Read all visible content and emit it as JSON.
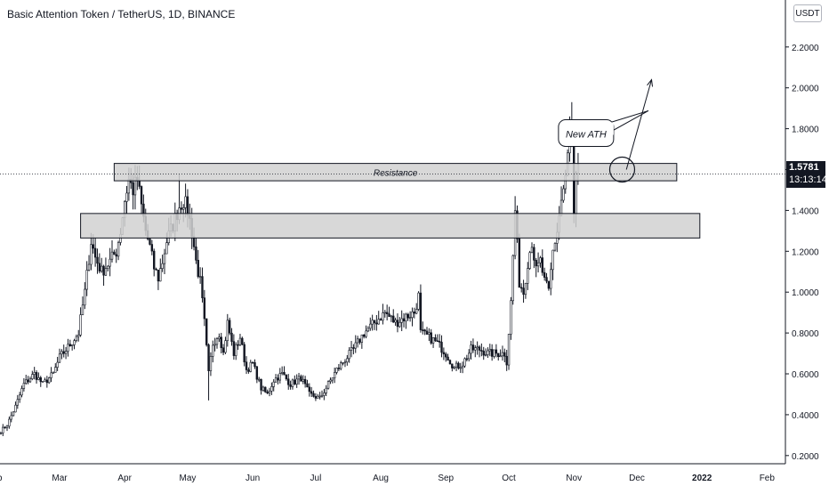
{
  "header": {
    "title": "Basic Attention Token / TetherUS, 1D, BINANCE",
    "currency": "USDT"
  },
  "colors": {
    "candle": "#131722",
    "zone_fill": "#d1d1d1",
    "zone_stroke": "#131722",
    "axis_text": "#131722",
    "crosshair": "#131722"
  },
  "chart_data": {
    "type": "candlestick",
    "symbol": "Basic Attention Token / TetherUS",
    "interval": "1D",
    "exchange": "BINANCE",
    "ylim": [
      0.16,
      2.43
    ],
    "x_ticks": [
      "Feb",
      "Mar",
      "Apr",
      "May",
      "Jun",
      "Jul",
      "Aug",
      "Sep",
      "Oct",
      "Nov",
      "Dec",
      "2022",
      "Feb"
    ],
    "x_tick_days": [
      -31,
      0,
      31,
      61,
      92,
      122,
      153,
      184,
      214,
      245,
      275,
      306,
      337
    ],
    "y_ticks": [
      "0.2000",
      "0.4000",
      "0.6000",
      "0.8000",
      "1.0000",
      "1.2000",
      "1.4000",
      "1.6000",
      "1.8000",
      "2.0000",
      "2.2000"
    ],
    "last_price": "1.5781",
    "countdown": "13:13:14",
    "zones": [
      {
        "label": "Resistance",
        "low": 1.545,
        "high": 1.63,
        "x_start_day": 26,
        "x_end_day": 294
      },
      {
        "label": "",
        "low": 1.265,
        "high": 1.385,
        "x_start_day": 10,
        "x_end_day": 305
      }
    ],
    "annotations": [
      {
        "text": "New ATH",
        "type": "callout",
        "day": 258,
        "price": 1.77
      },
      {
        "type": "circle",
        "day": 268,
        "price": 1.6
      },
      {
        "type": "arrow",
        "from_day": 270,
        "from_price": 1.6,
        "to_day": 282,
        "to_price": 2.04
      }
    ],
    "anchors": [
      [
        -28,
        0.32
      ],
      [
        -25,
        0.35
      ],
      [
        -21,
        0.44
      ],
      [
        -17,
        0.55
      ],
      [
        -12,
        0.6
      ],
      [
        -8,
        0.55
      ],
      [
        -3,
        0.6
      ],
      [
        0,
        0.68
      ],
      [
        4,
        0.73
      ],
      [
        9,
        0.8
      ],
      [
        12,
        1.0
      ],
      [
        15,
        1.25
      ],
      [
        17,
        1.17
      ],
      [
        20,
        1.1
      ],
      [
        24,
        1.15
      ],
      [
        27,
        1.2
      ],
      [
        29,
        1.3
      ],
      [
        31,
        1.45
      ],
      [
        33,
        1.55
      ],
      [
        35,
        1.5
      ],
      [
        37,
        1.55
      ],
      [
        39,
        1.42
      ],
      [
        41,
        1.3
      ],
      [
        43,
        1.22
      ],
      [
        45,
        1.12
      ],
      [
        47,
        1.07
      ],
      [
        49,
        1.15
      ],
      [
        51,
        1.25
      ],
      [
        54,
        1.33
      ],
      [
        57,
        1.42
      ],
      [
        59,
        1.45
      ],
      [
        61,
        1.4
      ],
      [
        63,
        1.3
      ],
      [
        65,
        1.15
      ],
      [
        67,
        1.05
      ],
      [
        69,
        0.85
      ],
      [
        71,
        0.6
      ],
      [
        73,
        0.75
      ],
      [
        76,
        0.8
      ],
      [
        78,
        0.7
      ],
      [
        80,
        0.85
      ],
      [
        83,
        0.7
      ],
      [
        86,
        0.78
      ],
      [
        89,
        0.62
      ],
      [
        92,
        0.65
      ],
      [
        96,
        0.53
      ],
      [
        99,
        0.5
      ],
      [
        102,
        0.57
      ],
      [
        106,
        0.6
      ],
      [
        110,
        0.55
      ],
      [
        115,
        0.58
      ],
      [
        119,
        0.5
      ],
      [
        124,
        0.48
      ],
      [
        128,
        0.55
      ],
      [
        132,
        0.62
      ],
      [
        136,
        0.67
      ],
      [
        140,
        0.72
      ],
      [
        145,
        0.8
      ],
      [
        150,
        0.85
      ],
      [
        155,
        0.9
      ],
      [
        160,
        0.85
      ],
      [
        165,
        0.88
      ],
      [
        169,
        0.9
      ],
      [
        171,
        0.98
      ],
      [
        172,
        0.8
      ],
      [
        176,
        0.78
      ],
      [
        180,
        0.75
      ],
      [
        184,
        0.7
      ],
      [
        188,
        0.63
      ],
      [
        192,
        0.65
      ],
      [
        196,
        0.72
      ],
      [
        200,
        0.72
      ],
      [
        204,
        0.7
      ],
      [
        208,
        0.7
      ],
      [
        212,
        0.7
      ],
      [
        213,
        0.66
      ],
      [
        215,
        0.95
      ],
      [
        217,
        1.4
      ],
      [
        219,
        1.05
      ],
      [
        221,
        1.0
      ],
      [
        223,
        1.15
      ],
      [
        225,
        1.25
      ],
      [
        227,
        1.1
      ],
      [
        229,
        1.15
      ],
      [
        231,
        1.05
      ],
      [
        233,
        1.0
      ],
      [
        235,
        1.2
      ],
      [
        237,
        1.3
      ],
      [
        239,
        1.45
      ],
      [
        241,
        1.55
      ],
      [
        243,
        1.78
      ],
      [
        244,
        1.7
      ],
      [
        245,
        1.35
      ],
      [
        246,
        1.55
      ],
      [
        247,
        1.58
      ]
    ]
  }
}
